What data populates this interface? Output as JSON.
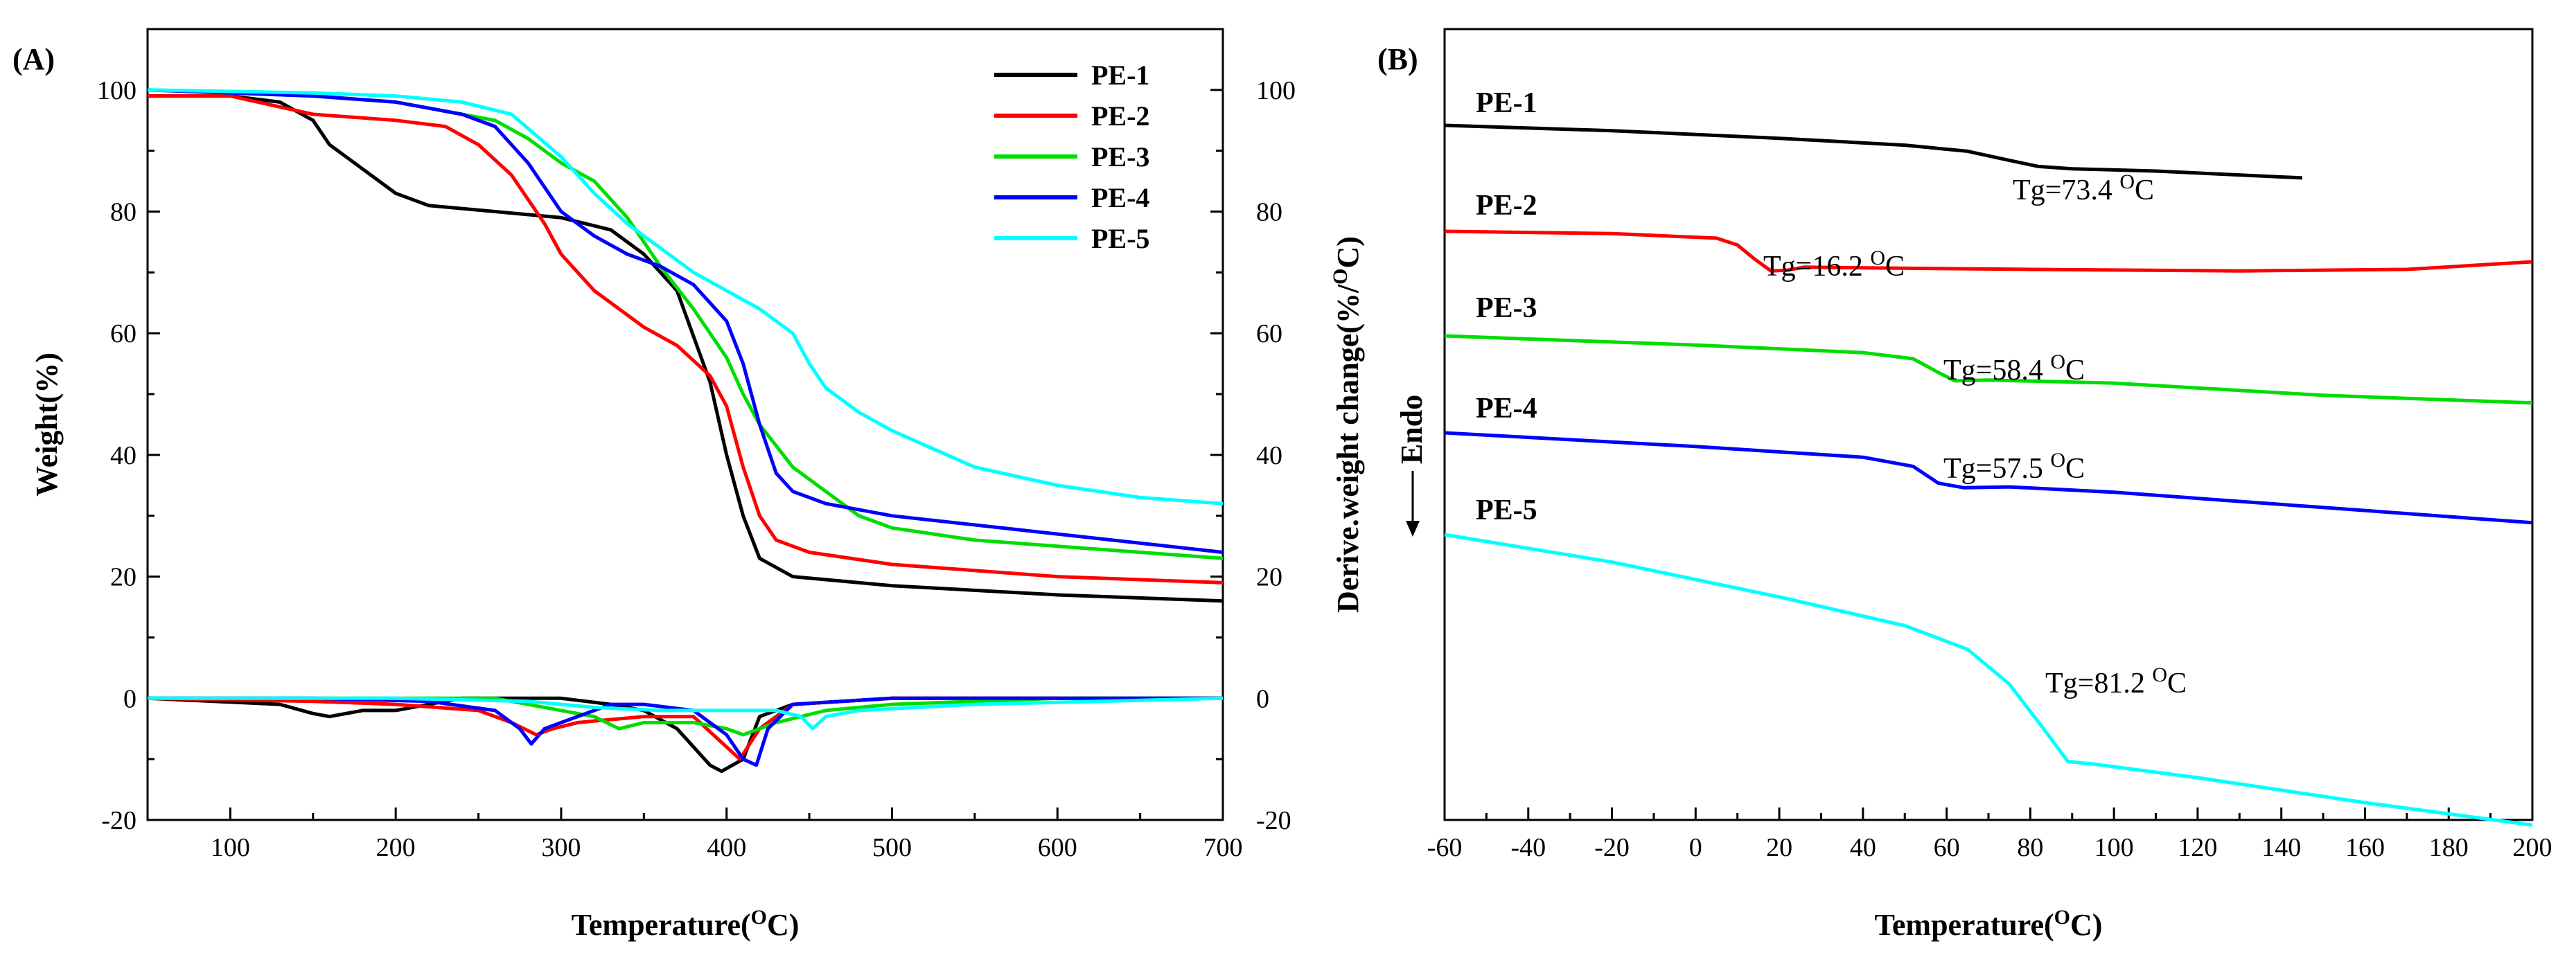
{
  "chart_data": [
    {
      "panel": "(A)",
      "type": "line",
      "xlabel": "Temperature(",
      "xlabel_sup": "O",
      "xlabel_end": "C)",
      "ylabel": "Weight(%)",
      "y2label": "Derive.weight change(%/",
      "y2label_sup": "O",
      "y2label_end": "C)",
      "xlim": [
        50,
        700
      ],
      "ylim": [
        -20,
        110
      ],
      "xticks": [
        "100",
        "200",
        "300",
        "400",
        "500",
        "600",
        "700"
      ],
      "yticks": [
        "-20",
        "0",
        "20",
        "40",
        "60",
        "80",
        "100"
      ],
      "y2ticks": [
        "-20",
        "0",
        "20",
        "40",
        "60",
        "80",
        "100"
      ],
      "legend": [
        "PE-1",
        "PE-2",
        "PE-3",
        "PE-4",
        "PE-5"
      ],
      "series": [
        {
          "name": "PE-1",
          "color": "#000000",
          "tga": [
            [
              50,
              99
            ],
            [
              100,
              99
            ],
            [
              130,
              98
            ],
            [
              150,
              95
            ],
            [
              160,
              91
            ],
            [
              180,
              87
            ],
            [
              200,
              83
            ],
            [
              220,
              81
            ],
            [
              260,
              80
            ],
            [
              300,
              79
            ],
            [
              330,
              77
            ],
            [
              350,
              73
            ],
            [
              370,
              67
            ],
            [
              390,
              52
            ],
            [
              400,
              40
            ],
            [
              410,
              30
            ],
            [
              420,
              23
            ],
            [
              440,
              20
            ],
            [
              500,
              18.5
            ],
            [
              600,
              17
            ],
            [
              700,
              16
            ]
          ],
          "dtg": [
            [
              50,
              0
            ],
            [
              130,
              -1
            ],
            [
              150,
              -2.5
            ],
            [
              160,
              -3
            ],
            [
              180,
              -2
            ],
            [
              200,
              -2
            ],
            [
              220,
              -1
            ],
            [
              240,
              0
            ],
            [
              280,
              0
            ],
            [
              300,
              0
            ],
            [
              330,
              -1
            ],
            [
              350,
              -2
            ],
            [
              370,
              -5
            ],
            [
              390,
              -11
            ],
            [
              397,
              -12
            ],
            [
              410,
              -10
            ],
            [
              420,
              -3
            ],
            [
              440,
              -1
            ],
            [
              500,
              0
            ],
            [
              700,
              0
            ]
          ]
        },
        {
          "name": "PE-2",
          "color": "#ff0000",
          "tga": [
            [
              50,
              99
            ],
            [
              100,
              99
            ],
            [
              150,
              96
            ],
            [
              200,
              95
            ],
            [
              230,
              94
            ],
            [
              250,
              91
            ],
            [
              270,
              86
            ],
            [
              290,
              78
            ],
            [
              300,
              73
            ],
            [
              320,
              67
            ],
            [
              350,
              61
            ],
            [
              370,
              58
            ],
            [
              390,
              53
            ],
            [
              400,
              48
            ],
            [
              410,
              38
            ],
            [
              420,
              30
            ],
            [
              430,
              26
            ],
            [
              450,
              24
            ],
            [
              500,
              22
            ],
            [
              600,
              20
            ],
            [
              700,
              19
            ]
          ],
          "dtg": [
            [
              50,
              0
            ],
            [
              150,
              -0.5
            ],
            [
              200,
              -1
            ],
            [
              250,
              -2
            ],
            [
              270,
              -4
            ],
            [
              285,
              -6
            ],
            [
              295,
              -5
            ],
            [
              310,
              -4
            ],
            [
              350,
              -3
            ],
            [
              380,
              -3
            ],
            [
              400,
              -8
            ],
            [
              408,
              -10
            ],
            [
              420,
              -5
            ],
            [
              440,
              -1
            ],
            [
              500,
              0
            ],
            [
              700,
              0
            ]
          ]
        },
        {
          "name": "PE-3",
          "color": "#00dd00",
          "tga": [
            [
              50,
              100
            ],
            [
              150,
              99
            ],
            [
              200,
              98
            ],
            [
              240,
              96
            ],
            [
              260,
              95
            ],
            [
              280,
              92
            ],
            [
              300,
              88
            ],
            [
              320,
              85
            ],
            [
              340,
              79
            ],
            [
              360,
              71
            ],
            [
              380,
              64
            ],
            [
              400,
              56
            ],
            [
              410,
              50
            ],
            [
              420,
              45
            ],
            [
              440,
              38
            ],
            [
              480,
              30
            ],
            [
              500,
              28
            ],
            [
              550,
              26
            ],
            [
              600,
              25
            ],
            [
              650,
              24
            ],
            [
              700,
              23
            ]
          ],
          "dtg": [
            [
              50,
              0
            ],
            [
              200,
              0
            ],
            [
              260,
              0
            ],
            [
              280,
              -1
            ],
            [
              300,
              -2
            ],
            [
              320,
              -3
            ],
            [
              335,
              -5
            ],
            [
              350,
              -4
            ],
            [
              380,
              -4
            ],
            [
              400,
              -5
            ],
            [
              410,
              -6
            ],
            [
              430,
              -4
            ],
            [
              460,
              -2
            ],
            [
              500,
              -1
            ],
            [
              600,
              0
            ],
            [
              700,
              0
            ]
          ]
        },
        {
          "name": "PE-4",
          "color": "#0000ff",
          "tga": [
            [
              50,
              100
            ],
            [
              150,
              99
            ],
            [
              200,
              98
            ],
            [
              240,
              96
            ],
            [
              260,
              94
            ],
            [
              280,
              88
            ],
            [
              300,
              80
            ],
            [
              320,
              76
            ],
            [
              340,
              73
            ],
            [
              360,
              71
            ],
            [
              380,
              68
            ],
            [
              400,
              62
            ],
            [
              410,
              55
            ],
            [
              420,
              45
            ],
            [
              430,
              37
            ],
            [
              440,
              34
            ],
            [
              460,
              32
            ],
            [
              500,
              30
            ],
            [
              600,
              27
            ],
            [
              700,
              24
            ]
          ],
          "dtg": [
            [
              50,
              0
            ],
            [
              150,
              0
            ],
            [
              220,
              -0.5
            ],
            [
              260,
              -2
            ],
            [
              275,
              -5
            ],
            [
              282,
              -7.5
            ],
            [
              290,
              -5
            ],
            [
              300,
              -4
            ],
            [
              330,
              -1
            ],
            [
              350,
              -1
            ],
            [
              380,
              -2
            ],
            [
              400,
              -6
            ],
            [
              410,
              -10
            ],
            [
              418,
              -11
            ],
            [
              425,
              -5
            ],
            [
              440,
              -1
            ],
            [
              500,
              0
            ],
            [
              700,
              0
            ]
          ]
        },
        {
          "name": "PE-5",
          "color": "#00ffff",
          "tga": [
            [
              50,
              100
            ],
            [
              150,
              99.5
            ],
            [
              200,
              99
            ],
            [
              240,
              98
            ],
            [
              270,
              96
            ],
            [
              300,
              89
            ],
            [
              320,
              83
            ],
            [
              340,
              78
            ],
            [
              360,
              74
            ],
            [
              380,
              70
            ],
            [
              400,
              67
            ],
            [
              420,
              64
            ],
            [
              440,
              60
            ],
            [
              450,
              55
            ],
            [
              460,
              51
            ],
            [
              480,
              47
            ],
            [
              500,
              44
            ],
            [
              550,
              38
            ],
            [
              600,
              35
            ],
            [
              650,
              33
            ],
            [
              700,
              32
            ]
          ],
          "dtg": [
            [
              50,
              0
            ],
            [
              200,
              0
            ],
            [
              280,
              -0.5
            ],
            [
              320,
              -1.5
            ],
            [
              360,
              -2
            ],
            [
              400,
              -2
            ],
            [
              430,
              -2
            ],
            [
              445,
              -3
            ],
            [
              452,
              -5
            ],
            [
              460,
              -3
            ],
            [
              480,
              -2
            ],
            [
              550,
              -1
            ],
            [
              700,
              0
            ]
          ]
        }
      ]
    },
    {
      "panel": "(B)",
      "type": "line",
      "xlabel": "Temperature(",
      "xlabel_sup": "O",
      "xlabel_end": "C)",
      "ylabel": "Endo",
      "xlim": [
        -60,
        200
      ],
      "xticks": [
        "-60",
        "-40",
        "-20",
        "0",
        "20",
        "40",
        "60",
        "80",
        "100",
        "120",
        "140",
        "160",
        "180",
        "200"
      ],
      "series": [
        {
          "name": "PE-1",
          "color": "#000000",
          "tg": "Tg=73.4 ",
          "tg_sup": "O",
          "tg_end": "C",
          "points": [
            [
              -60,
              0.0
            ],
            [
              -20,
              0.35
            ],
            [
              20,
              0.85
            ],
            [
              50,
              1.3
            ],
            [
              65,
              1.7
            ],
            [
              75,
              2.3
            ],
            [
              82,
              2.7
            ],
            [
              90,
              2.85
            ],
            [
              110,
              3.0
            ],
            [
              145,
              3.45
            ]
          ]
        },
        {
          "name": "PE-2",
          "color": "#ff0000",
          "tg": "Tg=16.2 ",
          "tg_sup": "O",
          "tg_end": "C",
          "points": [
            [
              -60,
              0.0
            ],
            [
              -20,
              0.15
            ],
            [
              5,
              0.45
            ],
            [
              10,
              0.9
            ],
            [
              14,
              1.8
            ],
            [
              18,
              2.6
            ],
            [
              22,
              2.55
            ],
            [
              26,
              2.35
            ],
            [
              40,
              2.4
            ],
            [
              80,
              2.5
            ],
            [
              130,
              2.6
            ],
            [
              170,
              2.5
            ],
            [
              200,
              2.0
            ]
          ]
        },
        {
          "name": "PE-3",
          "color": "#00dd00",
          "tg": "Tg=58.4 ",
          "tg_sup": "O",
          "tg_end": "C",
          "points": [
            [
              -60,
              0.0
            ],
            [
              0,
              0.6
            ],
            [
              40,
              1.1
            ],
            [
              52,
              1.5
            ],
            [
              58,
              2.4
            ],
            [
              62,
              2.95
            ],
            [
              70,
              2.9
            ],
            [
              100,
              3.1
            ],
            [
              150,
              3.9
            ],
            [
              200,
              4.4
            ]
          ]
        },
        {
          "name": "PE-4",
          "color": "#0000ff",
          "tg": "Tg=57.5 ",
          "tg_sup": "O",
          "tg_end": "C",
          "points": [
            [
              -60,
              0.0
            ],
            [
              0,
              0.9
            ],
            [
              40,
              1.6
            ],
            [
              52,
              2.2
            ],
            [
              58,
              3.3
            ],
            [
              64,
              3.6
            ],
            [
              75,
              3.55
            ],
            [
              100,
              3.9
            ],
            [
              150,
              4.9
            ],
            [
              200,
              5.9
            ]
          ]
        },
        {
          "name": "PE-5",
          "color": "#00ffff",
          "tg": "Tg=81.2 ",
          "tg_sup": "O",
          "tg_end": "C",
          "points": [
            [
              -60,
              0.0
            ],
            [
              -20,
              2.2
            ],
            [
              20,
              5.0
            ],
            [
              50,
              7.3
            ],
            [
              65,
              9.2
            ],
            [
              75,
              12.0
            ],
            [
              83,
              15.5
            ],
            [
              89,
              18.2
            ],
            [
              95,
              18.4
            ],
            [
              120,
              19.5
            ],
            [
              160,
              21.5
            ],
            [
              200,
              23.3
            ]
          ]
        }
      ]
    }
  ]
}
